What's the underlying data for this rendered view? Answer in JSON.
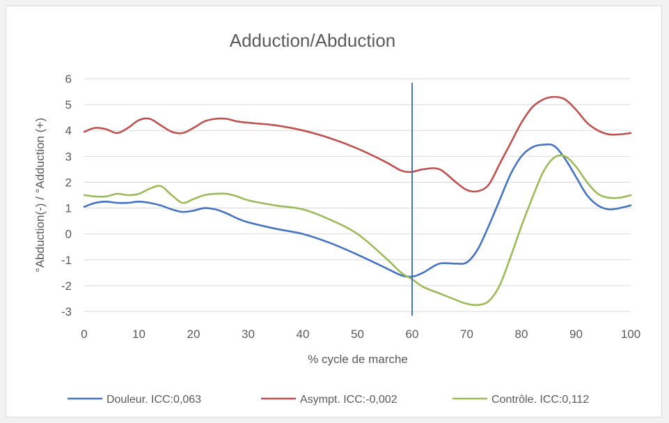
{
  "chart_data": {
    "type": "line",
    "title": "Adduction/Abduction",
    "xlabel": "% cycle de marche",
    "ylabel": "°Abduction(-) / °Adduction (+)",
    "xlim": [
      0,
      100
    ],
    "ylim": [
      -3,
      6
    ],
    "x_ticks": [
      "0",
      "10",
      "20",
      "30",
      "40",
      "50",
      "60",
      "70",
      "80",
      "90",
      "100"
    ],
    "y_ticks": [
      "6",
      "5",
      "4",
      "3",
      "2",
      "1",
      "0",
      "-1",
      "-2",
      "-3"
    ],
    "grid": true,
    "legend_position": "bottom",
    "vertical_marker_x": 60,
    "colors": {
      "douleur": "#4472c4",
      "asympt": "#c0504d",
      "controle": "#9bbb59",
      "marker": "#4472c4"
    },
    "x": [
      0,
      2,
      4,
      6,
      8,
      10,
      12,
      14,
      16,
      18,
      20,
      22,
      24,
      26,
      28,
      30,
      35,
      40,
      45,
      50,
      55,
      58,
      60,
      62,
      65,
      68,
      70,
      72,
      74,
      76,
      78,
      80,
      82,
      84,
      86,
      88,
      90,
      92,
      94,
      96,
      98,
      100
    ],
    "series": [
      {
        "name": "Douleur. ICC:0,063",
        "values": [
          1.05,
          1.2,
          1.25,
          1.2,
          1.2,
          1.25,
          1.2,
          1.1,
          0.95,
          0.85,
          0.9,
          1.0,
          0.95,
          0.8,
          0.6,
          0.45,
          0.2,
          0.0,
          -0.35,
          -0.8,
          -1.3,
          -1.6,
          -1.65,
          -1.5,
          -1.15,
          -1.15,
          -1.1,
          -0.6,
          0.3,
          1.3,
          2.3,
          3.0,
          3.35,
          3.45,
          3.4,
          2.9,
          2.2,
          1.5,
          1.1,
          0.95,
          1.0,
          1.1
        ]
      },
      {
        "name": "Asympt. ICC:-0,002",
        "values": [
          3.95,
          4.1,
          4.05,
          3.9,
          4.1,
          4.4,
          4.45,
          4.2,
          3.95,
          3.9,
          4.1,
          4.35,
          4.45,
          4.45,
          4.35,
          4.3,
          4.2,
          4.0,
          3.7,
          3.3,
          2.8,
          2.45,
          2.4,
          2.5,
          2.5,
          2.0,
          1.7,
          1.65,
          1.9,
          2.7,
          3.5,
          4.3,
          4.9,
          5.2,
          5.3,
          5.2,
          4.8,
          4.3,
          4.0,
          3.85,
          3.85,
          3.9
        ]
      },
      {
        "name": "Contrôle. ICC:0,112",
        "values": [
          1.5,
          1.45,
          1.45,
          1.55,
          1.5,
          1.55,
          1.75,
          1.85,
          1.5,
          1.2,
          1.35,
          1.5,
          1.55,
          1.55,
          1.45,
          1.3,
          1.1,
          0.95,
          0.55,
          0.0,
          -0.9,
          -1.5,
          -1.75,
          -2.05,
          -2.3,
          -2.55,
          -2.7,
          -2.75,
          -2.6,
          -2.0,
          -0.9,
          0.3,
          1.4,
          2.4,
          2.95,
          3.0,
          2.6,
          2.0,
          1.55,
          1.4,
          1.4,
          1.5
        ]
      }
    ]
  }
}
